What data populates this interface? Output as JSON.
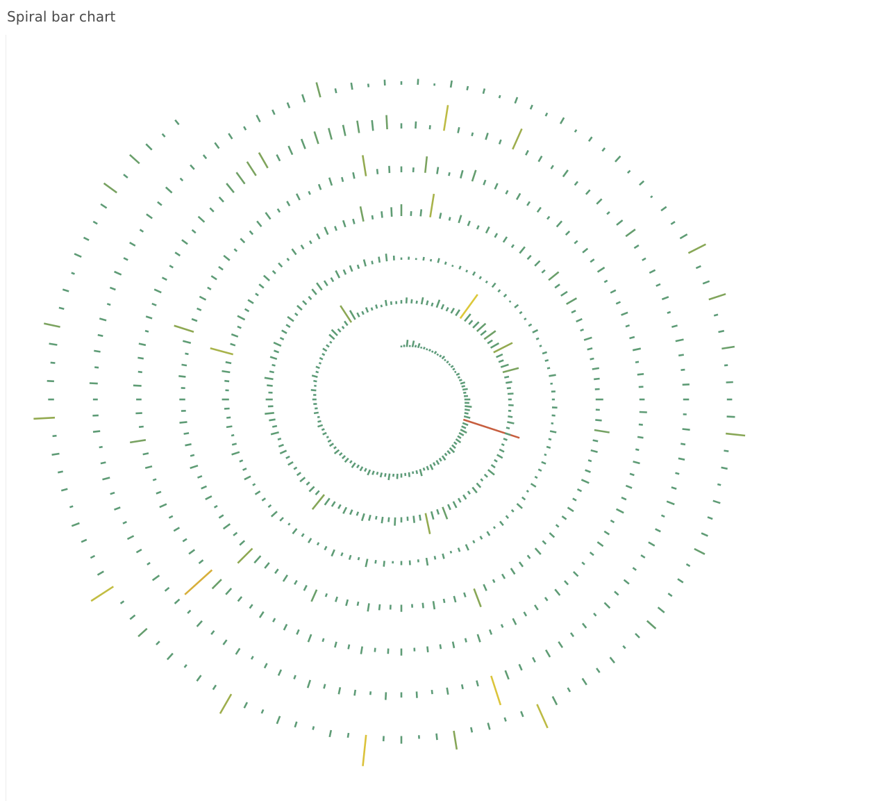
{
  "title": "Spiral bar chart",
  "chart_data": {
    "type": "bar",
    "layout": "spiral",
    "direction": "clockwise from top, bars extend outward",
    "title": "Spiral bar chart",
    "bars_per_turn": 120,
    "value_max": 100,
    "color_scale": {
      "stops": [
        {
          "value": 0,
          "color": "#5b9a7c"
        },
        {
          "value": 18,
          "color": "#5f9c72"
        },
        {
          "value": 35,
          "color": "#8ea852"
        },
        {
          "value": 50,
          "color": "#dcc83a"
        },
        {
          "value": 100,
          "color": "#c75e3f"
        }
      ]
    },
    "values": [
      3,
      4,
      12,
      3,
      11,
      4,
      8,
      3,
      4,
      3,
      4,
      3,
      5,
      3,
      4,
      6,
      3,
      4,
      3,
      5,
      4,
      3,
      6,
      4,
      5,
      8,
      6,
      9,
      5,
      7,
      10,
      8,
      12,
      9,
      7,
      11,
      100,
      10,
      8,
      12,
      9,
      7,
      10,
      6,
      8,
      11,
      7,
      5,
      9,
      6,
      8,
      6,
      10,
      7,
      5,
      12,
      6,
      4,
      8,
      5,
      7,
      9,
      5,
      11,
      6,
      8,
      5,
      7,
      10,
      6,
      8,
      6,
      10,
      5,
      9,
      7,
      6,
      10,
      5,
      8,
      6,
      4,
      7,
      5,
      9,
      6,
      4,
      8,
      5,
      6,
      7,
      5,
      9,
      4,
      6,
      10,
      5,
      7,
      4,
      6,
      5,
      8,
      6,
      4,
      12,
      14,
      7,
      5,
      9,
      34,
      18,
      8,
      6,
      9,
      5,
      7,
      4,
      10,
      6,
      5,
      6,
      10,
      7,
      5,
      12,
      8,
      6,
      14,
      9,
      7,
      10,
      12,
      50,
      16,
      9,
      14,
      20,
      12,
      24,
      10,
      16,
      36,
      12,
      9,
      14,
      28,
      8,
      11,
      7,
      10,
      6,
      9,
      5,
      8,
      12,
      6,
      10,
      7,
      5,
      9,
      11,
      6,
      8,
      14,
      7,
      5,
      10,
      12,
      6,
      9,
      8,
      12,
      10,
      22,
      9,
      14,
      36,
      10,
      12,
      7,
      9,
      14,
      8,
      11,
      6,
      10,
      13,
      7,
      9,
      12,
      8,
      10,
      14,
      32,
      9,
      12,
      7,
      11,
      8,
      6,
      10,
      7,
      12,
      9,
      6,
      14,
      8,
      11,
      16,
      9,
      12,
      7,
      10,
      15,
      8,
      6,
      12,
      9,
      14,
      7,
      10,
      8,
      13,
      6,
      11,
      9,
      7,
      12,
      15,
      10,
      8,
      14,
      9,
      11,
      7,
      12,
      6,
      10,
      13,
      8,
      4,
      5,
      3,
      6,
      4,
      8,
      5,
      3,
      6,
      4,
      7,
      5,
      4,
      9,
      5,
      6,
      3,
      8,
      5,
      4,
      6,
      10,
      5,
      4,
      8,
      6,
      5,
      12,
      4,
      7,
      5,
      9,
      6,
      4,
      11,
      5,
      7,
      4,
      8,
      6,
      5,
      10,
      4,
      7,
      12,
      5,
      6,
      9,
      4,
      8,
      6,
      5,
      11,
      7,
      4,
      9,
      6,
      13,
      5,
      8,
      7,
      4,
      10,
      6,
      14,
      5,
      8,
      6,
      12,
      7,
      5,
      9,
      6,
      11,
      4,
      8,
      13,
      6,
      7,
      10,
      5,
      12,
      7,
      6,
      14,
      8,
      5,
      10,
      7,
      9,
      12,
      6,
      8,
      14,
      10,
      40,
      9,
      12,
      7,
      14,
      8,
      11,
      6,
      10,
      13,
      7,
      9,
      5,
      12,
      8,
      6,
      10,
      14,
      8,
      12,
      9,
      26,
      7,
      11,
      16,
      20,
      8,
      12,
      40,
      10,
      6,
      14,
      9,
      7,
      12,
      8,
      11,
      6,
      14,
      9,
      12,
      7,
      22,
      10,
      13,
      20,
      8,
      11,
      6,
      14,
      9,
      7,
      12,
      10,
      8,
      13,
      7,
      11,
      26,
      9,
      12,
      6,
      10,
      14,
      8,
      7,
      12,
      9,
      6,
      11,
      8,
      14,
      7,
      10,
      12,
      9,
      6,
      12,
      33,
      8,
      11,
      7,
      14,
      9,
      6,
      12,
      8,
      10,
      14,
      7,
      11,
      9,
      6,
      22,
      10,
      8,
      13,
      9,
      12,
      16,
      35,
      11,
      8,
      14,
      9,
      6,
      12,
      10,
      8,
      14,
      7,
      11,
      9,
      13,
      8,
      10,
      7,
      12,
      9,
      6,
      14,
      35,
      10,
      8,
      12,
      7,
      11,
      9,
      13,
      6,
      10,
      8,
      12,
      14,
      7,
      9,
      12,
      6,
      10,
      14,
      8,
      11,
      36,
      9,
      12,
      10,
      8,
      28,
      12,
      6,
      14,
      20,
      9,
      11,
      7,
      12,
      8,
      10,
      6,
      13,
      9,
      7,
      11,
      8,
      14,
      6,
      10,
      8,
      12,
      7,
      9,
      14,
      6,
      11,
      8,
      9,
      13,
      7,
      10,
      6,
      12,
      8,
      11,
      9,
      14,
      7,
      10,
      12,
      8,
      6,
      11,
      9,
      13,
      7,
      10,
      8,
      12,
      6,
      9,
      14,
      7,
      11,
      8,
      10,
      6,
      12,
      9,
      7,
      13,
      8,
      10,
      6,
      14,
      9,
      11,
      7,
      12,
      8,
      10,
      14,
      22,
      62,
      9,
      12,
      8,
      11,
      7,
      13,
      9,
      6,
      12,
      10,
      27,
      8,
      11,
      9,
      14,
      7,
      10,
      12,
      6,
      11,
      8,
      13,
      9,
      7,
      10,
      12,
      8,
      14,
      9,
      11,
      20,
      24,
      28,
      30,
      12,
      16,
      18,
      22,
      20,
      19,
      21,
      18,
      24,
      9,
      12,
      7,
      44,
      10,
      6,
      12,
      8,
      38,
      9,
      11,
      7,
      14,
      8,
      10,
      12,
      6,
      13,
      20,
      9,
      7,
      11,
      8,
      12,
      6,
      10,
      14,
      9,
      7,
      12,
      10,
      6,
      13,
      8,
      11,
      7,
      9,
      14,
      6,
      10,
      12,
      8,
      7,
      11,
      9,
      13,
      6,
      10,
      8,
      12,
      14,
      9,
      11,
      16,
      52,
      10,
      8,
      12,
      7,
      11,
      9,
      13,
      6,
      10,
      12,
      8,
      14,
      7,
      11,
      9,
      6,
      12,
      10,
      8,
      13,
      7,
      11,
      9,
      14,
      6,
      10,
      12,
      7,
      11,
      8,
      13,
      9,
      6,
      12,
      10,
      8,
      14,
      7,
      11,
      9,
      12,
      6,
      10,
      13,
      8,
      11,
      7,
      12,
      9,
      14,
      6,
      10,
      8,
      12,
      11,
      7,
      13,
      9,
      10,
      14,
      26,
      8,
      12,
      6,
      10,
      6,
      10,
      4,
      12,
      7,
      9,
      5,
      11,
      8,
      6,
      12,
      5,
      9,
      7,
      13,
      6,
      10,
      4,
      11,
      8,
      14,
      33,
      9,
      12,
      30,
      7,
      10,
      22,
      6,
      12,
      9,
      14,
      33,
      8,
      11,
      6,
      13,
      9,
      12,
      20,
      7,
      11,
      8,
      14,
      20,
      10,
      6,
      12,
      9,
      13,
      8,
      16,
      44,
      10,
      7,
      12,
      9,
      32,
      11,
      6,
      13,
      9,
      53,
      8,
      12,
      6,
      10,
      14,
      7,
      11,
      38,
      9,
      12,
      6,
      14,
      8,
      20,
      11,
      7,
      45,
      12,
      8,
      10,
      14,
      6,
      11,
      9,
      13,
      7,
      36,
      10,
      12,
      8,
      14,
      28,
      9,
      11,
      6,
      13,
      10,
      8,
      12,
      27,
      9,
      22,
      14,
      7,
      10
    ]
  }
}
